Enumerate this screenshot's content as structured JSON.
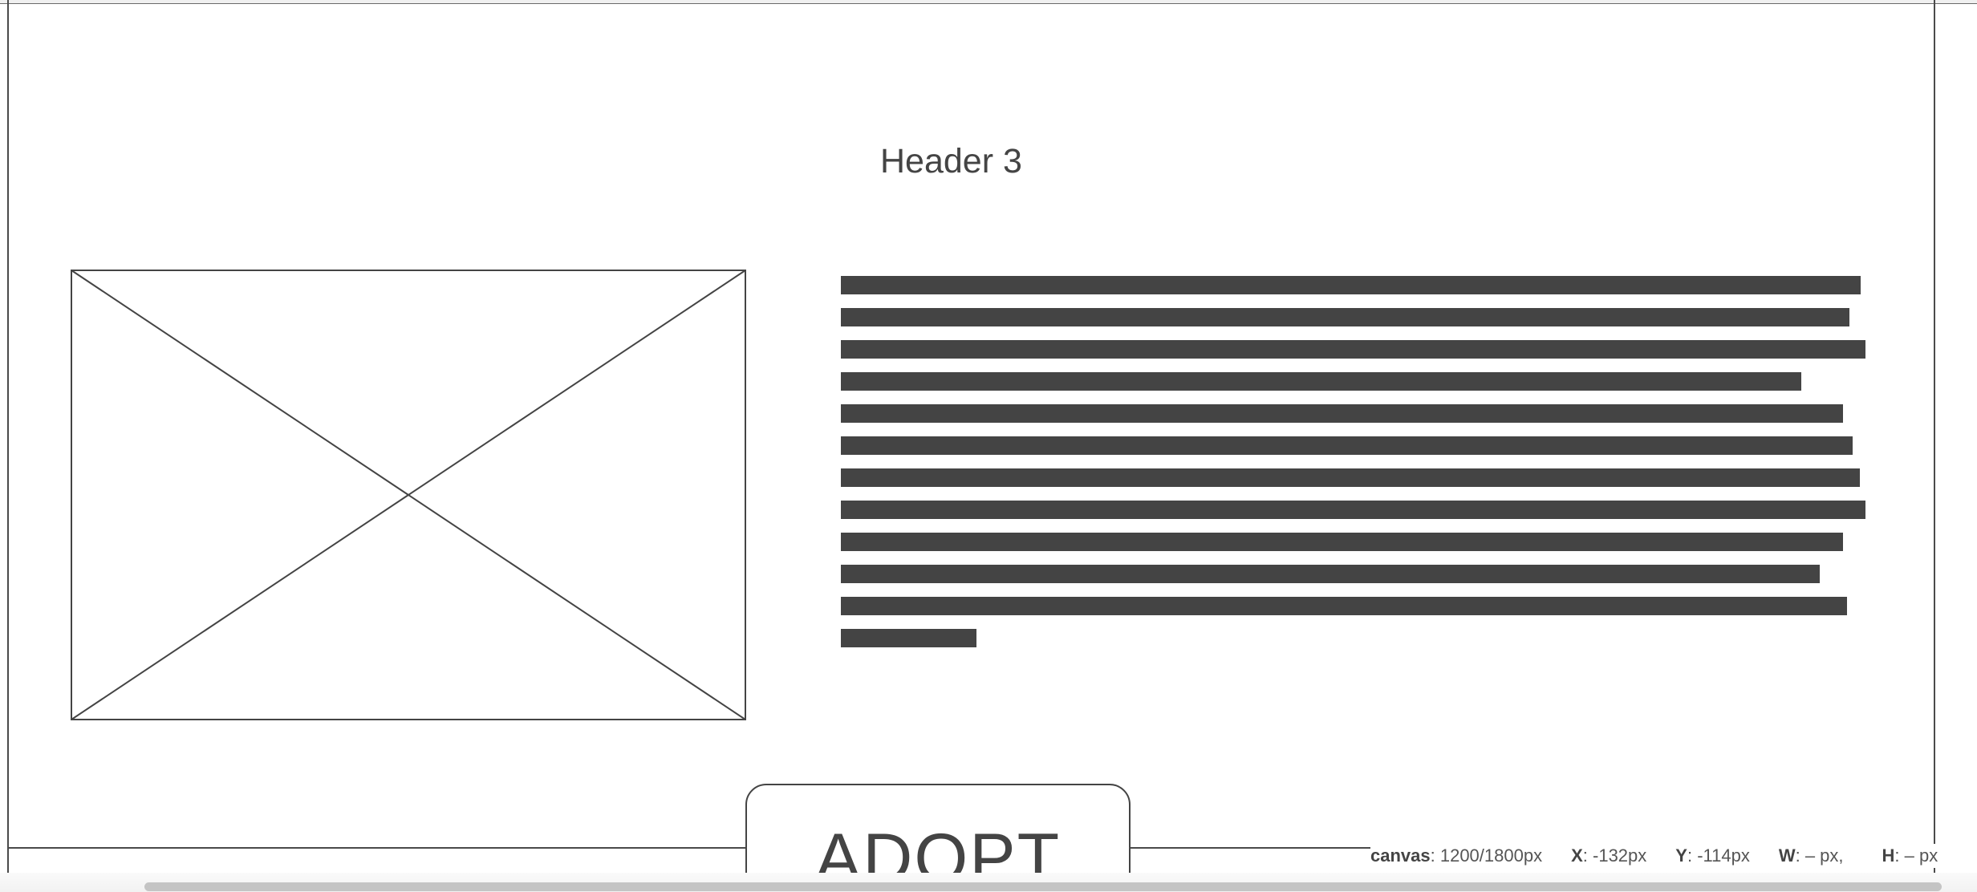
{
  "canvas": {
    "header": "Header 3",
    "image_placeholder": "image-placeholder-icon",
    "text_line_fill": [
      0.993,
      0.982,
      0.998,
      0.935,
      0.976,
      0.985,
      0.992,
      0.998,
      0.976,
      0.953,
      0.98,
      0.132
    ],
    "adopt_button_label": "ADOPT"
  },
  "statusbar": {
    "canvas_key": "canvas",
    "canvas_value": ": 1200/1800px",
    "x_key": "X",
    "x_value": ": -132px",
    "y_key": "Y",
    "y_value": ": -114px",
    "w_key": "W",
    "w_value": ": – px,",
    "h_key": "H",
    "h_value": ": – px"
  },
  "colors": {
    "ink": "#444444",
    "frame": "#4a4a4a",
    "scroll_thumb": "#c4c4c4"
  }
}
